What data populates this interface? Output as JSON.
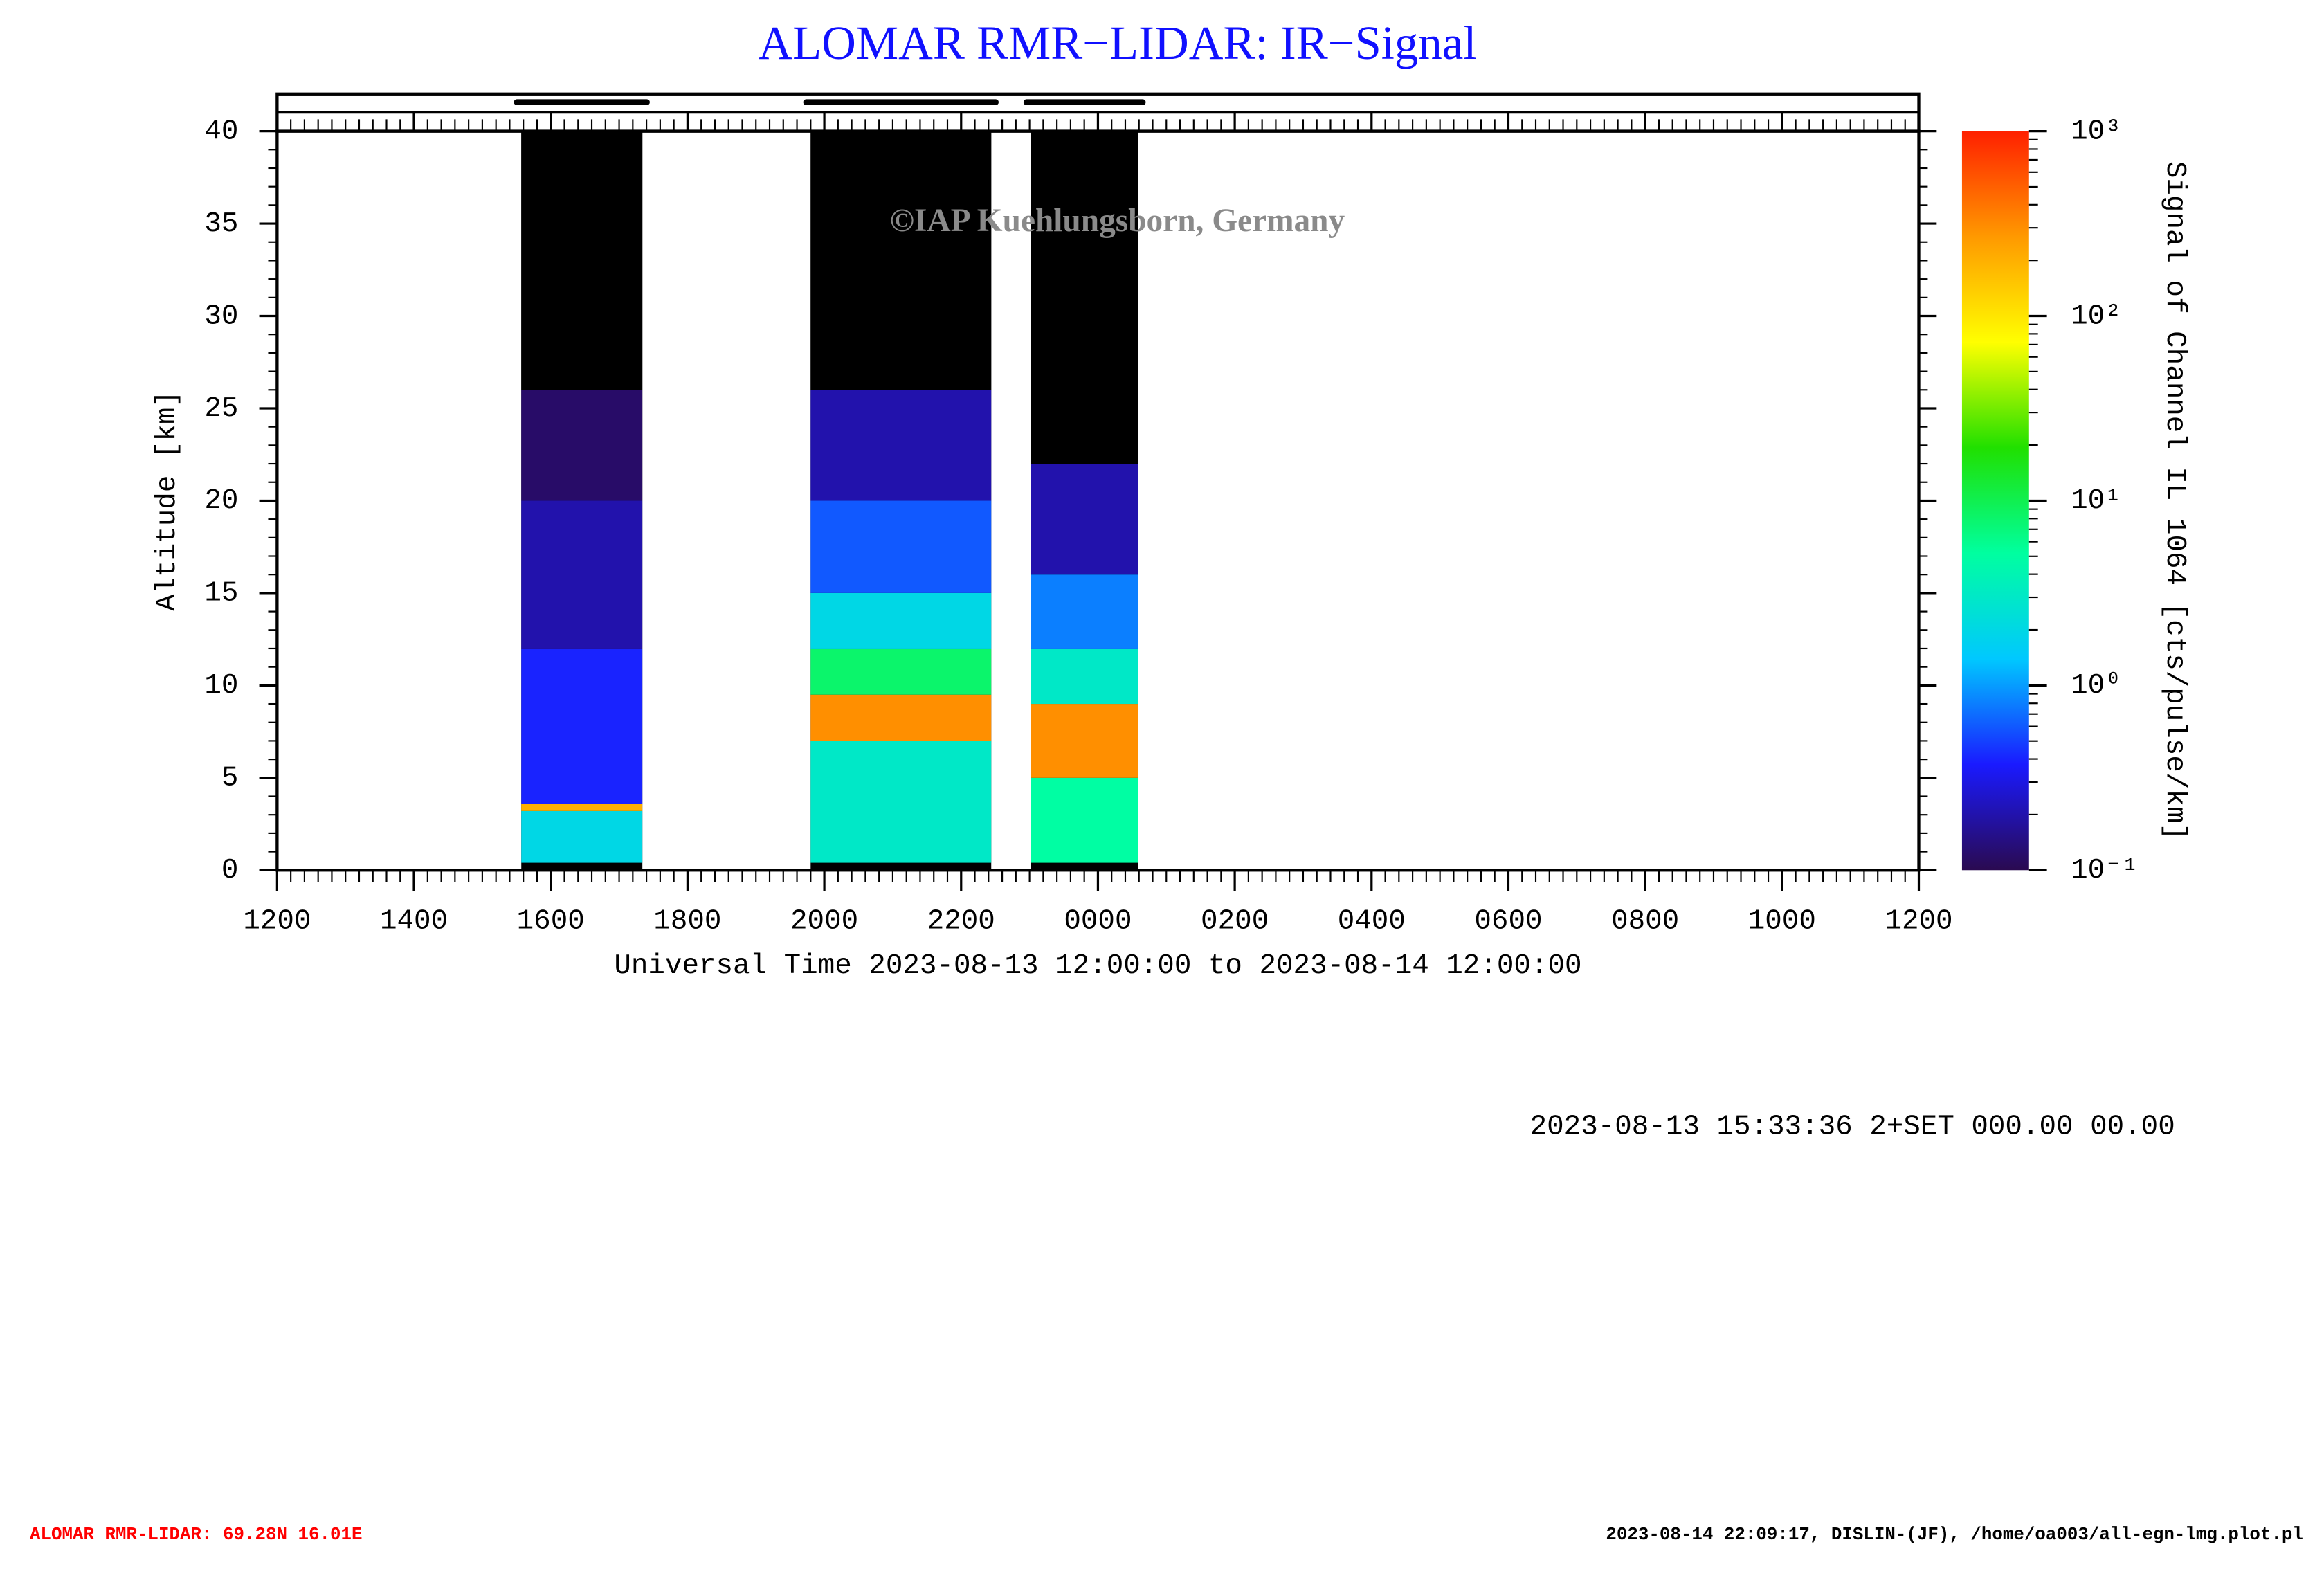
{
  "chart_data": {
    "type": "heatmap",
    "title": "ALOMAR RMR−LIDAR: IR−Signal",
    "watermark": "©IAP Kuehlungsborn, Germany",
    "xlabel": "Universal Time 2023-08-13 12:00:00 to 2023-08-14 12:00:00",
    "ylabel": "Altitude [km]",
    "colorbar_label": "Signal of Channel IL 1064 [cts/pulse/km]",
    "info": "2023-08-13 15:33:36 2+SET 000.00 00.00",
    "footer_left": "ALOMAR RMR-LIDAR: 69.28N 16.01E",
    "footer_right": "2023-08-14 22:09:17, DISLIN-(JF), /home/oa003/all-egn-lmg.plot.pl",
    "xlim": [
      0,
      24
    ],
    "xticks": [
      {
        "value": 0,
        "label": "1200"
      },
      {
        "value": 2,
        "label": "1400"
      },
      {
        "value": 4,
        "label": "1600"
      },
      {
        "value": 6,
        "label": "1800"
      },
      {
        "value": 8,
        "label": "2000"
      },
      {
        "value": 10,
        "label": "2200"
      },
      {
        "value": 12,
        "label": "0000"
      },
      {
        "value": 14,
        "label": "0200"
      },
      {
        "value": 16,
        "label": "0400"
      },
      {
        "value": 18,
        "label": "0600"
      },
      {
        "value": 20,
        "label": "0800"
      },
      {
        "value": 22,
        "label": "1000"
      },
      {
        "value": 24,
        "label": "1200"
      }
    ],
    "ylim": [
      0,
      40
    ],
    "yticks": [
      0,
      5,
      10,
      15,
      20,
      25,
      30,
      35,
      40
    ],
    "clim": [
      0.1,
      1000
    ],
    "log_scale_color": true,
    "cticks": [
      {
        "value": 0.1,
        "label": "10⁻¹"
      },
      {
        "value": 1,
        "label": "10⁰"
      },
      {
        "value": 10,
        "label": "10¹"
      },
      {
        "value": 100,
        "label": "10²"
      },
      {
        "value": 1000,
        "label": "10³"
      }
    ],
    "colormap": [
      "#2a0a50",
      "#1a1aff",
      "#00c8ff",
      "#00ffa0",
      "#20e000",
      "#ffff00",
      "#ff9900",
      "#ff2000"
    ],
    "below_color": "#000000",
    "periods": [
      {
        "start": 3.57,
        "end": 5.34,
        "edges": [
          0.4,
          3.2,
          3.6,
          12,
          20,
          26,
          40
        ],
        "values": [
          2,
          200,
          0.4,
          0.2,
          0.12,
          0.05
        ]
      },
      {
        "start": 7.8,
        "end": 10.44,
        "edges": [
          0.4,
          7,
          9.5,
          12,
          15,
          20,
          26,
          40
        ],
        "values": [
          3,
          300,
          8,
          2,
          0.6,
          0.2,
          0.05
        ]
      },
      {
        "start": 11.02,
        "end": 12.59,
        "edges": [
          0.4,
          5,
          9,
          12,
          16,
          22,
          40
        ],
        "values": [
          5,
          300,
          3,
          0.8,
          0.2,
          0.05
        ]
      }
    ]
  }
}
